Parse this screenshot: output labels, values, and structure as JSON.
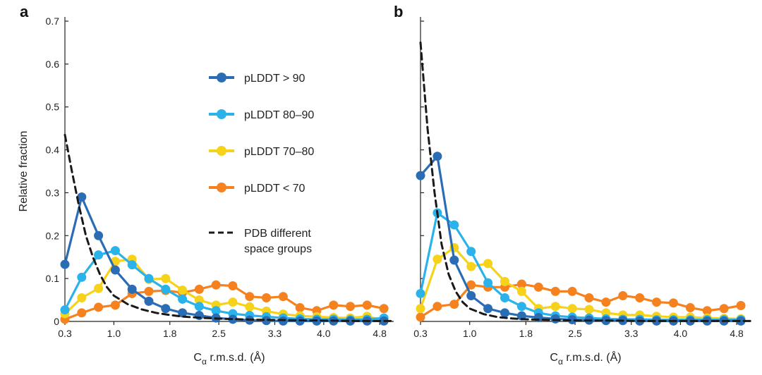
{
  "chart_data": [
    {
      "type": "line",
      "panel_label": "a",
      "xlabel_base": "C",
      "xlabel_sub": "α",
      "xlabel_rest": " r.m.s.d. (Å)",
      "ylabel": "Relative fraction",
      "xlim": [
        0.3,
        5.0
      ],
      "ylim": [
        0,
        0.7
      ],
      "xticks": [
        0.3,
        1.0,
        1.8,
        2.5,
        3.3,
        4.0,
        4.8
      ],
      "xtick_labels": [
        "0.3",
        "1.0",
        "1.8",
        "2.5",
        "3.3",
        "4.0",
        "4.8"
      ],
      "yticks": [
        0,
        0.1,
        0.2,
        0.3,
        0.4,
        0.5,
        0.6,
        0.7
      ],
      "ytick_labels": [
        "0",
        "0.1",
        "0.2",
        "0.3",
        "0.4",
        "0.5",
        "0.6",
        "0.7"
      ],
      "x": [
        0.3,
        0.54,
        0.78,
        1.02,
        1.26,
        1.5,
        1.74,
        1.98,
        2.22,
        2.46,
        2.7,
        2.94,
        3.18,
        3.42,
        3.66,
        3.9,
        4.14,
        4.38,
        4.62,
        4.86
      ],
      "series": [
        {
          "name": "pLDDT > 90",
          "color": "#2a6db5",
          "values": [
            0.133,
            0.29,
            0.2,
            0.12,
            0.075,
            0.047,
            0.03,
            0.02,
            0.014,
            0.008,
            0.005,
            0.003,
            0.002,
            0.001,
            0.001,
            0.001,
            0.001,
            0.001,
            0.001,
            0.001
          ]
        },
        {
          "name": "pLDDT 80–90",
          "color": "#2ab2ea",
          "values": [
            0.027,
            0.103,
            0.155,
            0.165,
            0.132,
            0.1,
            0.075,
            0.052,
            0.035,
            0.025,
            0.018,
            0.014,
            0.011,
            0.008,
            0.006,
            0.005,
            0.005,
            0.004,
            0.005,
            0.008
          ]
        },
        {
          "name": "pLDDT 70–80",
          "color": "#f7d21b",
          "values": [
            0.018,
            0.055,
            0.077,
            0.14,
            0.145,
            0.098,
            0.1,
            0.073,
            0.05,
            0.038,
            0.045,
            0.034,
            0.024,
            0.017,
            0.013,
            0.011,
            0.009,
            0.008,
            0.012,
            0.002
          ]
        },
        {
          "name": "pLDDT < 70",
          "color": "#f5821f",
          "values": [
            0.005,
            0.02,
            0.033,
            0.038,
            0.065,
            0.07,
            0.072,
            0.067,
            0.075,
            0.085,
            0.083,
            0.058,
            0.055,
            0.058,
            0.032,
            0.025,
            0.038,
            0.035,
            0.038,
            0.03
          ]
        }
      ],
      "reference": {
        "name": "PDB different space groups",
        "color": "#1a1a1a",
        "x": [
          0.3,
          0.4,
          0.5,
          0.6,
          0.7,
          0.8,
          0.9,
          1.0,
          1.2,
          1.4,
          1.6,
          1.8,
          2.0,
          2.3,
          2.6,
          3.0,
          3.5,
          4.0,
          4.5,
          5.0
        ],
        "values": [
          0.435,
          0.35,
          0.27,
          0.2,
          0.15,
          0.11,
          0.08,
          0.06,
          0.04,
          0.028,
          0.02,
          0.015,
          0.011,
          0.008,
          0.006,
          0.004,
          0.003,
          0.002,
          0.001,
          0.001
        ]
      },
      "legend": {
        "location": "upper-center",
        "entries": [
          "pLDDT > 90",
          "pLDDT 80–90",
          "pLDDT 70–80",
          "pLDDT < 70"
        ],
        "reference_entry_line1": "PDB different",
        "reference_entry_line2": "space groups"
      }
    },
    {
      "type": "line",
      "panel_label": "b",
      "xlabel_base": "C",
      "xlabel_sub": "α",
      "xlabel_rest": " r.m.s.d. (Å)",
      "xlim": [
        0.3,
        5.0
      ],
      "ylim": [
        0,
        0.7
      ],
      "xticks": [
        0.3,
        1.0,
        1.8,
        2.5,
        3.3,
        4.0,
        4.8
      ],
      "xtick_labels": [
        "0.3",
        "1.0",
        "1.8",
        "2.5",
        "3.3",
        "4.0",
        "4.8"
      ],
      "yticks": [
        0,
        0.1,
        0.2,
        0.3,
        0.4,
        0.5,
        0.6,
        0.7
      ],
      "x": [
        0.3,
        0.54,
        0.78,
        1.02,
        1.26,
        1.5,
        1.74,
        1.98,
        2.22,
        2.46,
        2.7,
        2.94,
        3.18,
        3.42,
        3.66,
        3.9,
        4.14,
        4.38,
        4.62,
        4.86
      ],
      "series": [
        {
          "name": "pLDDT > 90",
          "color": "#2a6db5",
          "values": [
            0.34,
            0.385,
            0.143,
            0.06,
            0.03,
            0.02,
            0.013,
            0.009,
            0.006,
            0.004,
            0.003,
            0.002,
            0.002,
            0.001,
            0.001,
            0.001,
            0.001,
            0.001,
            0.001,
            0.001
          ]
        },
        {
          "name": "pLDDT 80–90",
          "color": "#2ab2ea",
          "values": [
            0.065,
            0.253,
            0.225,
            0.163,
            0.09,
            0.055,
            0.035,
            0.02,
            0.013,
            0.01,
            0.008,
            0.006,
            0.005,
            0.005,
            0.004,
            0.004,
            0.004,
            0.004,
            0.004,
            0.004
          ]
        },
        {
          "name": "pLDDT 70–80",
          "color": "#f7d21b",
          "values": [
            0.03,
            0.145,
            0.172,
            0.128,
            0.135,
            0.093,
            0.07,
            0.03,
            0.035,
            0.03,
            0.028,
            0.02,
            0.015,
            0.015,
            0.012,
            0.01,
            0.01,
            0.008,
            0.007,
            0.006
          ]
        },
        {
          "name": "pLDDT < 70",
          "color": "#f5821f",
          "values": [
            0.01,
            0.035,
            0.04,
            0.085,
            0.08,
            0.08,
            0.087,
            0.08,
            0.07,
            0.07,
            0.055,
            0.045,
            0.06,
            0.055,
            0.045,
            0.043,
            0.032,
            0.025,
            0.03,
            0.037
          ]
        }
      ],
      "reference": {
        "name": "PDB different space groups",
        "color": "#1a1a1a",
        "x": [
          0.3,
          0.4,
          0.5,
          0.6,
          0.7,
          0.8,
          0.9,
          1.0,
          1.2,
          1.4,
          1.6,
          1.8,
          2.0,
          2.3,
          2.6,
          3.0,
          3.5,
          4.0,
          4.5,
          5.0
        ],
        "values": [
          0.65,
          0.45,
          0.3,
          0.18,
          0.11,
          0.07,
          0.045,
          0.03,
          0.017,
          0.01,
          0.007,
          0.005,
          0.004,
          0.003,
          0.002,
          0.002,
          0.001,
          0.001,
          0.001,
          0.001
        ]
      }
    }
  ]
}
